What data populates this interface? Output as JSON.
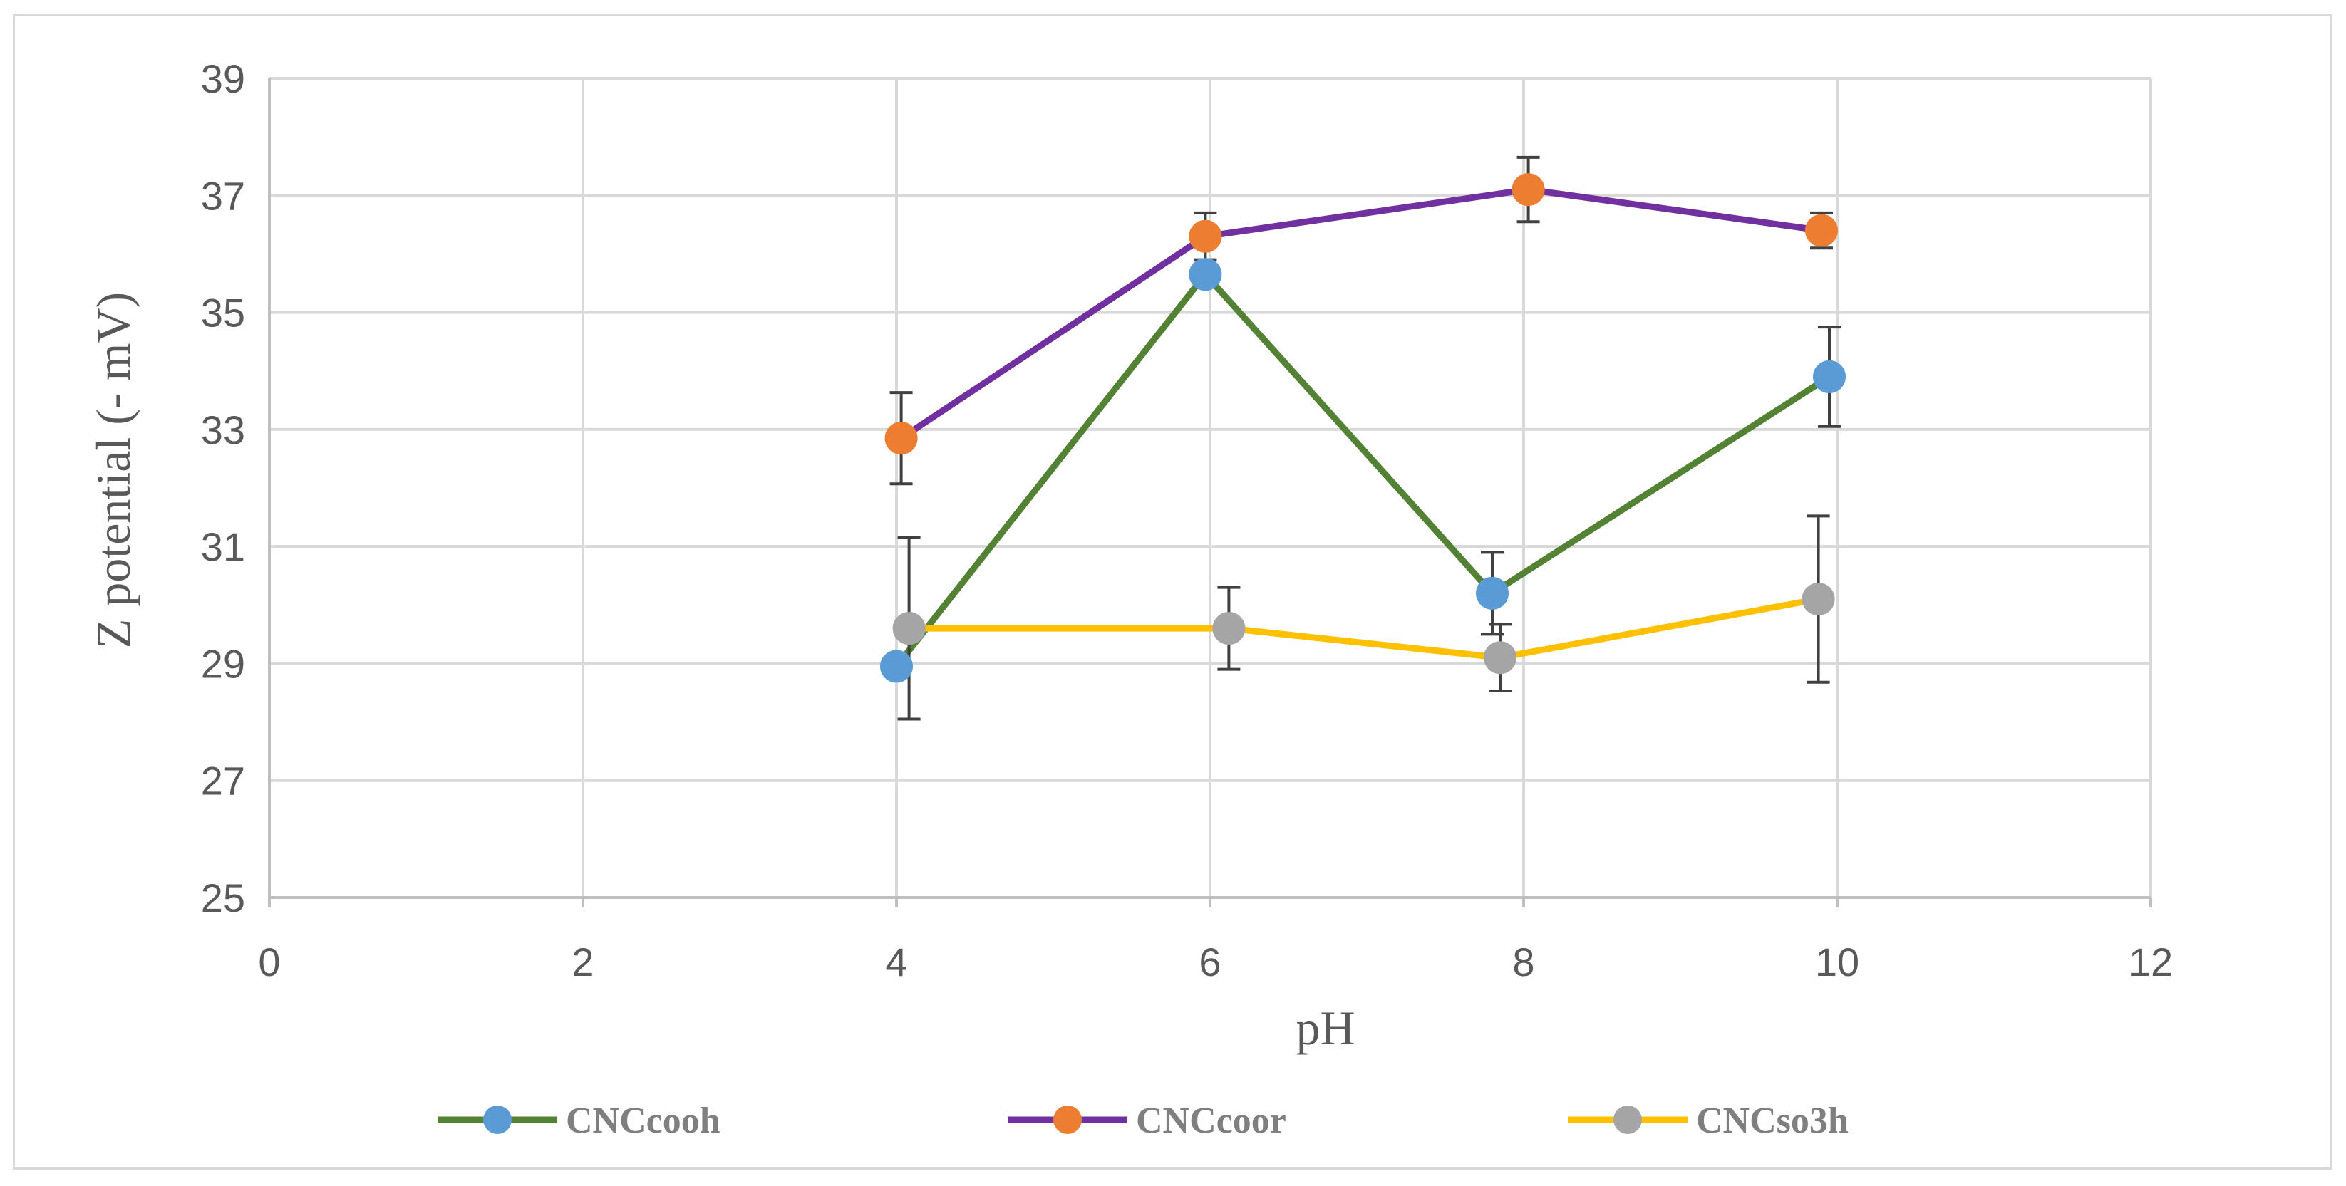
{
  "chart_data": {
    "type": "line",
    "title": "",
    "xlabel": "pH",
    "ylabel": "Z potential (- mV)",
    "xlim": [
      0,
      12
    ],
    "ylim": [
      25,
      39
    ],
    "x_ticks": [
      0,
      2,
      4,
      6,
      8,
      10,
      12
    ],
    "y_ticks": [
      25,
      27,
      29,
      31,
      33,
      35,
      37,
      39
    ],
    "x_tick_labels": [
      "0",
      "2",
      "4",
      "6",
      "8",
      "10",
      "12"
    ],
    "y_tick_labels": [
      "25",
      "27",
      "29",
      "31",
      "33",
      "35",
      "37",
      "39"
    ],
    "grid": true,
    "legend_position": "bottom",
    "series": [
      {
        "name": "CNCcooh",
        "line_color": "#548235",
        "marker_color": "#5b9bd5",
        "x": [
          4.0,
          5.97,
          7.8,
          9.95
        ],
        "y": [
          28.95,
          35.65,
          30.2,
          33.9
        ],
        "err": [
          0.0,
          0.0,
          0.7,
          0.85
        ]
      },
      {
        "name": "CNCcoor",
        "line_color": "#7030a0",
        "marker_color": "#ed7d31",
        "x": [
          4.03,
          5.97,
          8.03,
          9.9
        ],
        "y": [
          32.85,
          36.3,
          37.1,
          36.4
        ],
        "err": [
          0.78,
          0.4,
          0.55,
          0.3
        ]
      },
      {
        "name": "CNCso3h",
        "line_color": "#ffc000",
        "marker_color": "#a5a5a5",
        "x": [
          4.08,
          6.12,
          7.85,
          9.88
        ],
        "y": [
          29.6,
          29.6,
          29.1,
          30.1
        ],
        "err": [
          1.55,
          0.7,
          0.57,
          1.42
        ]
      }
    ]
  }
}
